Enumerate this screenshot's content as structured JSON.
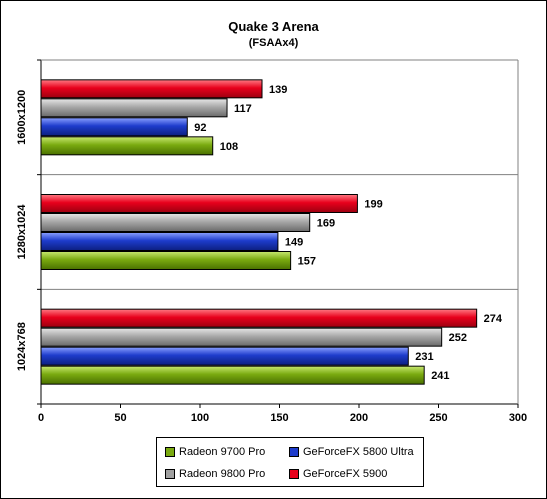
{
  "chart_data": {
    "type": "bar",
    "orientation": "horizontal",
    "title": "Quake 3 Arena",
    "subtitle": "(FSAAx4)",
    "categories": [
      "1600x1200",
      "1280x1024",
      "1024x768"
    ],
    "series": [
      {
        "name": "GeForceFX 5900",
        "color": "#e8001c",
        "values": [
          139,
          199,
          274
        ]
      },
      {
        "name": "Radeon 9800 Pro",
        "color": "#a0a0a0",
        "values": [
          117,
          169,
          252
        ]
      },
      {
        "name": "GeForceFX 5800 Ultra",
        "color": "#1e3ccc",
        "values": [
          92,
          149,
          231
        ]
      },
      {
        "name": "Radeon 9700 Pro",
        "color": "#7aaa10",
        "values": [
          108,
          157,
          241
        ]
      }
    ],
    "xlim": [
      0,
      300
    ],
    "xticks": [
      "0",
      "50",
      "100",
      "150",
      "200",
      "250",
      "300"
    ],
    "grid": false,
    "legend_position": "bottom"
  },
  "legend": {
    "items": [
      {
        "label": "Radeon 9700 Pro",
        "color": "#7aaa10"
      },
      {
        "label": "GeForceFX 5800 Ultra",
        "color": "#1e3ccc"
      },
      {
        "label": "Radeon 9800 Pro",
        "color": "#a0a0a0"
      },
      {
        "label": "GeForceFX 5900",
        "color": "#e8001c"
      }
    ]
  }
}
